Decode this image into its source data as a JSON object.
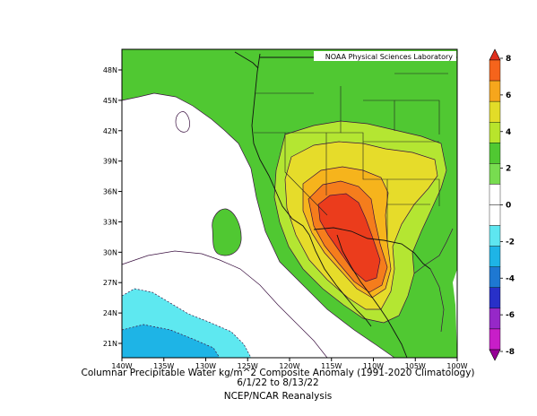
{
  "credit": "NOAA Physical Sciences Laboratory",
  "caption": {
    "line1": "Columnar Precipitable Water kg/m^2 Composite Anomaly (1991-2020 Climatology)",
    "line2": "6/1/22  to 8/13/22",
    "line3": "NCEP/NCAR Reanalysis"
  },
  "axes": {
    "lon_labels": [
      "140W",
      "135W",
      "130W",
      "125W",
      "120W",
      "115W",
      "110W",
      "105W",
      "100W"
    ],
    "lat_labels": [
      "21N",
      "24N",
      "27N",
      "30N",
      "33N",
      "36N",
      "39N",
      "42N",
      "45N",
      "48N"
    ]
  },
  "colorbar": {
    "labels": [
      "8",
      "6",
      "4",
      "2",
      "0",
      "-2",
      "-4",
      "-6",
      "-8"
    ],
    "colors": [
      "#e0301e",
      "#f5641c",
      "#f6a61c",
      "#e2dc28",
      "#b8e42c",
      "#50c832",
      "#78dc50",
      "#ffffff",
      "#ffffff",
      "#5ee6f0",
      "#1eb4e6",
      "#1e78d2",
      "#2830c8",
      "#9628c8",
      "#c81ec8",
      "#960096"
    ]
  },
  "palette": {
    "green": "#50c832",
    "lightgreen": "#b4e632",
    "yellow": "#e6dc2a",
    "gold": "#f6b41c",
    "orange": "#f57d1c",
    "red": "#eb3c1c",
    "cyan": "#5ee8f0",
    "skyblue": "#1eb4e6"
  }
}
